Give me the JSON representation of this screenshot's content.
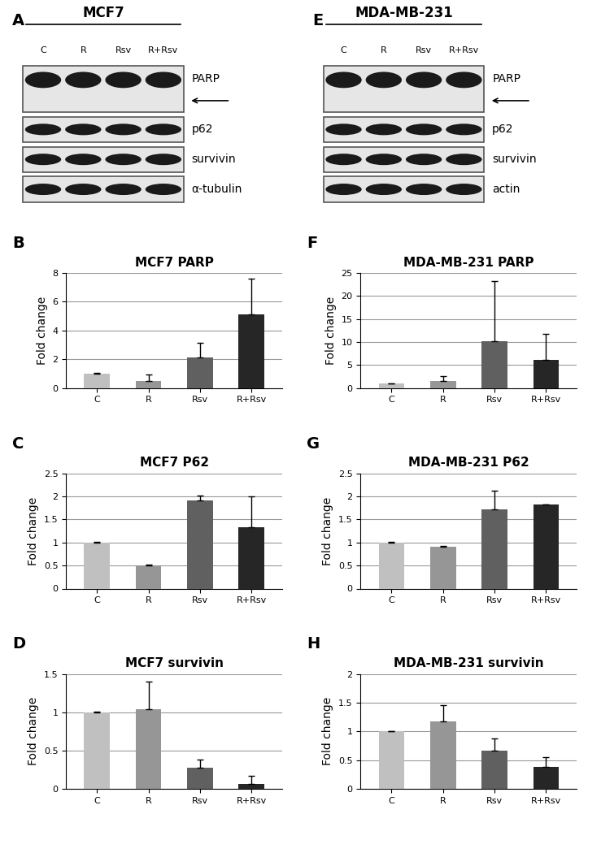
{
  "blots": [
    {
      "panel": "A",
      "title": "MCF7",
      "lanes": [
        "C",
        "R",
        "Rsv",
        "R+Rsv"
      ],
      "rows": [
        "PARP",
        "p62",
        "survivin",
        "α-tubulin"
      ]
    },
    {
      "panel": "E",
      "title": "MDA-MB-231",
      "lanes": [
        "C",
        "R",
        "Rsv",
        "R+Rsv"
      ],
      "rows": [
        "PARP",
        "p62",
        "survivin",
        "actin"
      ]
    }
  ],
  "chart_data": [
    {
      "type": "bar",
      "panel": "B",
      "title": "MCF7 PARP",
      "y_label": "Fold change",
      "categories": [
        "C",
        "R",
        "Rsv",
        "R+Rsv"
      ],
      "values": [
        1,
        0.5,
        2.15,
        5.1
      ],
      "errors": [
        0.05,
        0.45,
        1.0,
        2.5
      ],
      "colors": [
        "#c0c0c0",
        "#969696",
        "#606060",
        "#262626"
      ],
      "ylim": [
        0,
        8
      ],
      "yticks": [
        0,
        2,
        4,
        6,
        8
      ],
      "grid": true
    },
    {
      "type": "bar",
      "panel": "C",
      "title": "MCF7 P62",
      "y_label": "Fold change",
      "categories": [
        "C",
        "R",
        "Rsv",
        "R+Rsv"
      ],
      "values": [
        1,
        0.5,
        1.92,
        1.33
      ],
      "errors": [
        0.02,
        0.02,
        0.1,
        0.68
      ],
      "colors": [
        "#c0c0c0",
        "#969696",
        "#606060",
        "#262626"
      ],
      "ylim": [
        0,
        2.5
      ],
      "yticks": [
        0,
        0.5,
        1,
        1.5,
        2,
        2.5
      ],
      "grid": true
    },
    {
      "type": "bar",
      "panel": "D",
      "title": "MCF7 survivin",
      "y_label": "Fold change",
      "categories": [
        "C",
        "R",
        "Rsv",
        "R+Rsv"
      ],
      "values": [
        1,
        1.04,
        0.28,
        0.07
      ],
      "errors": [
        0.01,
        0.36,
        0.1,
        0.1
      ],
      "colors": [
        "#c0c0c0",
        "#969696",
        "#606060",
        "#262626"
      ],
      "ylim": [
        0,
        1.5
      ],
      "yticks": [
        0,
        0.5,
        1,
        1.5
      ],
      "grid": true
    },
    {
      "type": "bar",
      "panel": "F",
      "title": "MDA-MB-231 PARP",
      "y_label": "Fold change",
      "categories": [
        "C",
        "R",
        "Rsv",
        "R+Rsv"
      ],
      "values": [
        1,
        1.5,
        10.1,
        6.1
      ],
      "errors": [
        0.05,
        1.1,
        13.1,
        5.7
      ],
      "colors": [
        "#c0c0c0",
        "#969696",
        "#606060",
        "#262626"
      ],
      "ylim": [
        0,
        25
      ],
      "yticks": [
        0,
        5,
        10,
        15,
        20,
        25
      ],
      "grid": true
    },
    {
      "type": "bar",
      "panel": "G",
      "title": "MDA-MB-231 P62",
      "y_label": "Fold change",
      "categories": [
        "C",
        "R",
        "Rsv",
        "R+Rsv"
      ],
      "values": [
        1,
        0.9,
        1.72,
        1.83
      ],
      "errors": [
        0.01,
        0.03,
        0.4,
        0
      ],
      "colors": [
        "#c0c0c0",
        "#969696",
        "#606060",
        "#262626"
      ],
      "ylim": [
        0,
        2.5
      ],
      "yticks": [
        0,
        0.5,
        1,
        1.5,
        2,
        2.5
      ],
      "grid": true
    },
    {
      "type": "bar",
      "panel": "H",
      "title": "MDA-MB-231 survivin",
      "y_label": "Fold change",
      "categories": [
        "C",
        "R",
        "Rsv",
        "R+Rsv"
      ],
      "values": [
        1,
        1.17,
        0.66,
        0.38
      ],
      "errors": [
        0.01,
        0.28,
        0.22,
        0.17
      ],
      "colors": [
        "#c0c0c0",
        "#969696",
        "#606060",
        "#262626"
      ],
      "ylim": [
        0,
        2
      ],
      "yticks": [
        0,
        0.5,
        1,
        1.5,
        2
      ],
      "grid": true
    }
  ]
}
